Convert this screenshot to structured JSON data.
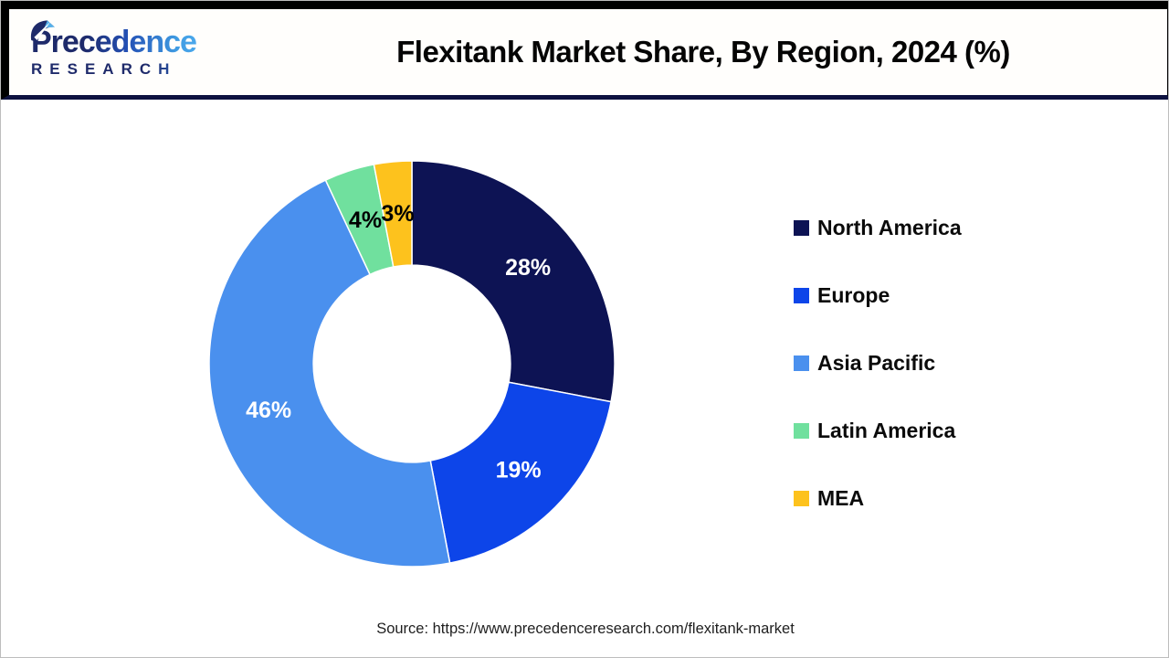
{
  "header": {
    "logo": {
      "name": "Precedence",
      "sub": "RESEARCH"
    },
    "title": "Flexitank Market Share, By Region, 2024 (%)"
  },
  "chart_data": {
    "type": "pie",
    "subtype": "donut",
    "title": "Flexitank Market Share, By Region, 2024 (%)",
    "categories": [
      "North America",
      "Europe",
      "Asia Pacific",
      "Latin America",
      "MEA"
    ],
    "values": [
      28,
      19,
      46,
      4,
      3
    ],
    "labels": [
      "28%",
      "19%",
      "46%",
      "4%",
      "3%"
    ],
    "unit": "%",
    "colors": [
      "#0d1354",
      "#0d45e9",
      "#4a90ee",
      "#70e09e",
      "#fdc21d"
    ],
    "label_colors": [
      "#ffffff",
      "#ffffff",
      "#ffffff",
      "#000000",
      "#000000"
    ],
    "start_angle_deg": 0,
    "direction": "clockwise",
    "inner_radius_ratio": 0.486,
    "legend_position": "right"
  },
  "footer": {
    "source": "Source: https://www.precedenceresearch.com/flexitank-market"
  }
}
